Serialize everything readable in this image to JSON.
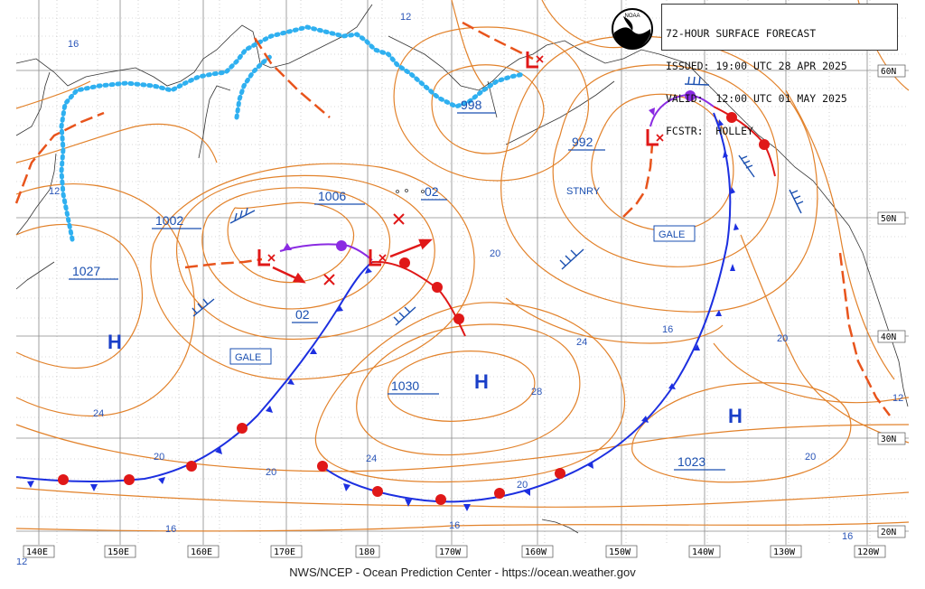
{
  "header": {
    "title": "72-HOUR SURFACE FORECAST",
    "issued_label": "ISSUED:",
    "issued_value": "19:00 UTC 28 APR 2025",
    "valid_label": "VALID:",
    "valid_value": "12:00 UTC 01 MAY 2025",
    "fcstr_label": "FCSTR:",
    "fcstr_value": "HOLLEY"
  },
  "logo": {
    "text": "NOAA",
    "icon": "noaa-logo-icon"
  },
  "footer": "NWS/NCEP - Ocean Prediction Center - https://ocean.weather.gov",
  "longitude_labels": [
    "140E",
    "150E",
    "160E",
    "170E",
    "180",
    "170W",
    "160W",
    "150W",
    "140W",
    "130W",
    "120W"
  ],
  "latitude_labels": [
    "60N",
    "50N",
    "40N",
    "30N",
    "20N"
  ],
  "systems": {
    "highs": [
      {
        "symbol": "H",
        "pressure": "1027"
      },
      {
        "symbol": "H",
        "pressure": "1030"
      },
      {
        "symbol": "H",
        "pressure": "1023"
      }
    ],
    "lows": [
      {
        "symbol": "L",
        "pressure": "1002"
      },
      {
        "symbol": "L",
        "pressure": "1006"
      },
      {
        "symbol": "L",
        "pressure": "02"
      },
      {
        "symbol": "L",
        "pressure": "998"
      },
      {
        "symbol": "L",
        "pressure": "992"
      }
    ],
    "extra_pressures": [
      "02"
    ]
  },
  "annotations": {
    "gale_1": "GALE",
    "gale_2": "GALE",
    "stnry": "STNRY"
  },
  "isotherm_labels": [
    "12",
    "16",
    "16",
    "12",
    "20",
    "24",
    "28",
    "24",
    "20",
    "20",
    "24",
    "20",
    "16",
    "16",
    "20",
    "12",
    "12",
    "20",
    "16"
  ],
  "colors": {
    "isobar": "#e2822b",
    "cold_front": "#1c2fe0",
    "warm_front": "#e01818",
    "occluded": "#8a2be2",
    "trough": "#e8541c",
    "ice_edge": "#2fb0f0",
    "grid": "#8a8a8a",
    "text": "#1a4fb0"
  }
}
